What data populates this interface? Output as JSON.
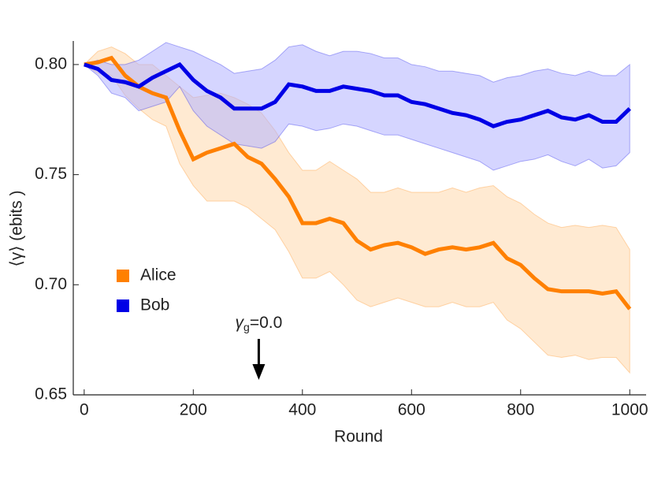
{
  "chart_data": {
    "type": "line",
    "x_label": "Round",
    "y_label": "⟨γ⟩ (ebits )",
    "x": [
      0,
      25,
      50,
      75,
      100,
      125,
      150,
      175,
      200,
      225,
      250,
      275,
      300,
      325,
      350,
      375,
      400,
      425,
      450,
      475,
      500,
      525,
      550,
      575,
      600,
      625,
      650,
      675,
      700,
      725,
      750,
      775,
      800,
      825,
      850,
      875,
      900,
      925,
      950,
      975,
      1000
    ],
    "series": [
      {
        "name": "Alice",
        "color": "#ff8000",
        "band_color": "#ffd9ad",
        "values": [
          0.8,
          0.801,
          0.803,
          0.795,
          0.79,
          0.787,
          0.785,
          0.77,
          0.757,
          0.76,
          0.762,
          0.764,
          0.758,
          0.755,
          0.748,
          0.74,
          0.728,
          0.728,
          0.73,
          0.728,
          0.72,
          0.716,
          0.718,
          0.719,
          0.717,
          0.714,
          0.716,
          0.717,
          0.716,
          0.717,
          0.719,
          0.712,
          0.709,
          0.703,
          0.698,
          0.697,
          0.697,
          0.697,
          0.696,
          0.697,
          0.689
        ],
        "upper": [
          0.8,
          0.806,
          0.808,
          0.805,
          0.8,
          0.8,
          0.795,
          0.79,
          0.785,
          0.786,
          0.787,
          0.785,
          0.782,
          0.778,
          0.77,
          0.76,
          0.752,
          0.752,
          0.756,
          0.752,
          0.748,
          0.742,
          0.742,
          0.744,
          0.742,
          0.742,
          0.742,
          0.744,
          0.742,
          0.744,
          0.745,
          0.74,
          0.737,
          0.732,
          0.728,
          0.726,
          0.727,
          0.726,
          0.727,
          0.726,
          0.716
        ],
        "lower": [
          0.8,
          0.796,
          0.795,
          0.786,
          0.78,
          0.775,
          0.772,
          0.755,
          0.745,
          0.738,
          0.738,
          0.738,
          0.735,
          0.73,
          0.725,
          0.715,
          0.703,
          0.703,
          0.706,
          0.7,
          0.693,
          0.69,
          0.692,
          0.694,
          0.692,
          0.69,
          0.69,
          0.692,
          0.69,
          0.69,
          0.692,
          0.684,
          0.68,
          0.674,
          0.668,
          0.667,
          0.668,
          0.666,
          0.667,
          0.667,
          0.66
        ]
      },
      {
        "name": "Bob",
        "color": "#0000e6",
        "band_color": "#b3b3ff",
        "values": [
          0.8,
          0.798,
          0.793,
          0.792,
          0.79,
          0.794,
          0.797,
          0.8,
          0.793,
          0.788,
          0.785,
          0.78,
          0.78,
          0.78,
          0.783,
          0.791,
          0.79,
          0.788,
          0.788,
          0.79,
          0.789,
          0.788,
          0.786,
          0.786,
          0.783,
          0.782,
          0.78,
          0.778,
          0.777,
          0.775,
          0.772,
          0.774,
          0.775,
          0.777,
          0.779,
          0.776,
          0.775,
          0.777,
          0.774,
          0.774,
          0.78
        ],
        "upper": [
          0.8,
          0.802,
          0.8,
          0.8,
          0.802,
          0.806,
          0.81,
          0.808,
          0.806,
          0.803,
          0.8,
          0.796,
          0.797,
          0.798,
          0.802,
          0.808,
          0.809,
          0.806,
          0.804,
          0.806,
          0.806,
          0.805,
          0.803,
          0.803,
          0.8,
          0.799,
          0.797,
          0.797,
          0.796,
          0.795,
          0.792,
          0.794,
          0.795,
          0.797,
          0.798,
          0.796,
          0.795,
          0.797,
          0.795,
          0.795,
          0.8
        ],
        "lower": [
          0.8,
          0.795,
          0.787,
          0.785,
          0.779,
          0.781,
          0.783,
          0.79,
          0.779,
          0.772,
          0.768,
          0.764,
          0.763,
          0.762,
          0.765,
          0.773,
          0.772,
          0.77,
          0.771,
          0.773,
          0.772,
          0.77,
          0.768,
          0.768,
          0.766,
          0.764,
          0.762,
          0.76,
          0.758,
          0.756,
          0.752,
          0.754,
          0.756,
          0.757,
          0.759,
          0.756,
          0.754,
          0.757,
          0.753,
          0.754,
          0.76
        ]
      }
    ],
    "xlim": [
      -20,
      1030
    ],
    "ylim": [
      0.65,
      0.8107
    ],
    "xticks": [
      0,
      200,
      400,
      600,
      800,
      1000
    ],
    "yticks": [
      0.65,
      {
        "value": 0.7,
        "label": "0.70"
      },
      0.75,
      {
        "value": 0.8,
        "label": "0.80"
      }
    ],
    "annotation": {
      "symbol": "γ",
      "subscript": "g",
      "text": "=0.0",
      "x": 320
    }
  }
}
